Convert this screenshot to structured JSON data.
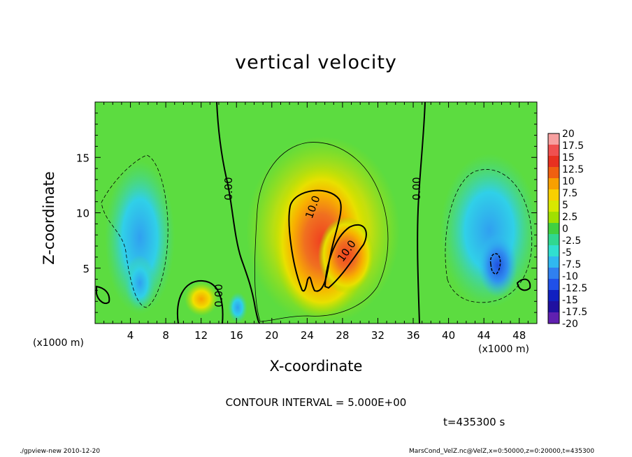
{
  "chart_data": {
    "type": "heatmap",
    "title": "vertical velocity",
    "xlabel": "X-coordinate",
    "ylabel": "Z-coordinate",
    "x_unit_label": "(x1000 m)",
    "y_unit_label": "(x1000 m)",
    "xlim": [
      0,
      50
    ],
    "ylim": [
      0,
      20
    ],
    "x_ticks": [
      4,
      8,
      12,
      16,
      20,
      24,
      28,
      32,
      36,
      40,
      44,
      48
    ],
    "y_ticks": [
      5,
      10,
      15
    ],
    "colorbar": {
      "levels": [
        "20",
        "17.5",
        "15",
        "12.5",
        "10",
        "7.5",
        "5",
        "2.5",
        "0",
        "-2.5",
        "-5",
        "-7.5",
        "-10",
        "-12.5",
        "-15",
        "-17.5",
        "-20"
      ],
      "colors": [
        "#f7a0a0",
        "#f05050",
        "#e83020",
        "#f06010",
        "#f8a000",
        "#f8d000",
        "#d8e800",
        "#a0e000",
        "#40d040",
        "#30d890",
        "#30e0d0",
        "#30b8f0",
        "#3080f0",
        "#2050e8",
        "#1020c0",
        "#2010a0",
        "#6020b0"
      ]
    },
    "contour_labels": [
      "0.00",
      "0.00",
      "10.0",
      "10.0",
      "0.00"
    ],
    "contour_interval": "CONTOUR INTERVAL = 5.000E+00",
    "time": "t=435300 s",
    "grid": false
  },
  "footer": {
    "left": "./gpview-new  2010-12-20",
    "right": "MarsCond_VelZ.nc@VelZ,x=0:50000,z=0:20000,t=435300"
  }
}
